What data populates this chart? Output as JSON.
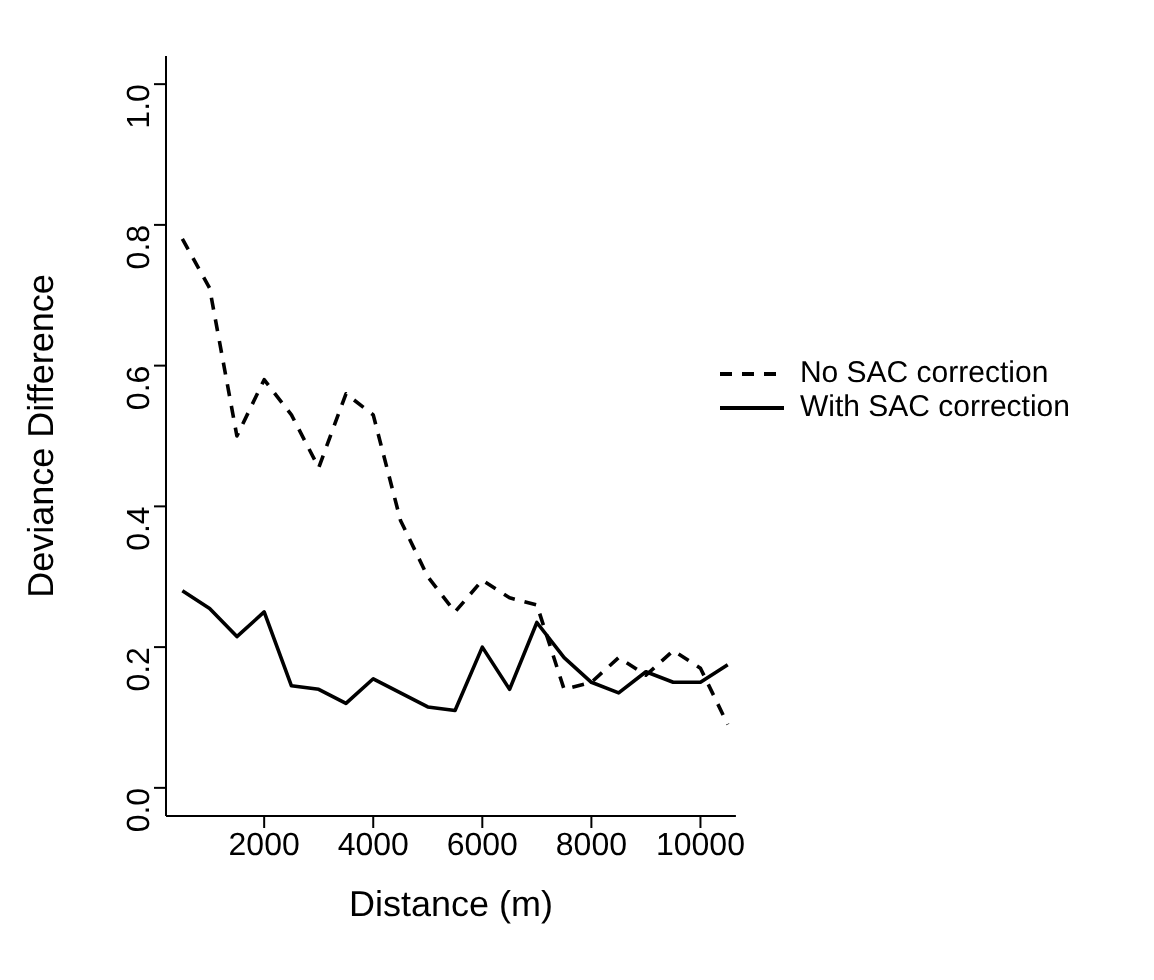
{
  "chart_data": {
    "type": "line",
    "xlabel": "Distance (m)",
    "ylabel": "Deviance Difference",
    "x": [
      500,
      1000,
      1500,
      2000,
      2500,
      3000,
      3500,
      4000,
      4500,
      5000,
      5500,
      6000,
      6500,
      7000,
      7500,
      8000,
      8500,
      9000,
      9500,
      10000,
      10500
    ],
    "series": [
      {
        "name": "No SAC correction",
        "color": "#000000",
        "line_style": "dashed",
        "values": [
          0.78,
          0.71,
          0.5,
          0.58,
          0.53,
          0.455,
          0.56,
          0.53,
          0.38,
          0.3,
          0.25,
          0.295,
          0.27,
          0.26,
          0.14,
          0.15,
          0.185,
          0.16,
          0.195,
          0.17,
          0.09
        ]
      },
      {
        "name": "With SAC correction",
        "color": "#000000",
        "line_style": "solid",
        "values": [
          0.28,
          0.255,
          0.215,
          0.25,
          0.145,
          0.14,
          0.12,
          0.155,
          0.135,
          0.115,
          0.11,
          0.2,
          0.14,
          0.235,
          0.185,
          0.15,
          0.135,
          0.165,
          0.15,
          0.15,
          0.175
        ]
      }
    ],
    "xlim": [
      200,
      10650
    ],
    "xticks": [
      2000,
      4000,
      6000,
      8000,
      10000
    ],
    "ylim": [
      -0.04,
      1.04
    ],
    "yticks": [
      {
        "value": 0,
        "label": "0.0"
      },
      0.2,
      0.4,
      0.6,
      0.8,
      {
        "value": 1,
        "label": "1.0"
      }
    ],
    "grid": false,
    "legend": "right",
    "marker": "none"
  }
}
